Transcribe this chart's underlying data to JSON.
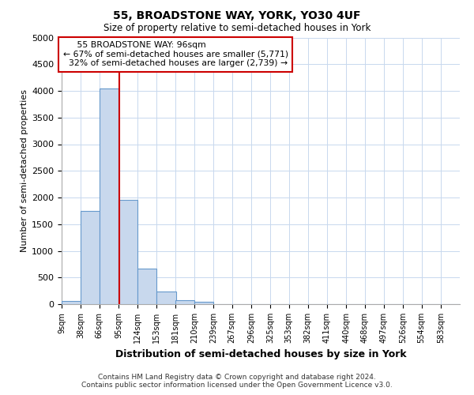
{
  "title": "55, BROADSTONE WAY, YORK, YO30 4UF",
  "subtitle": "Size of property relative to semi-detached houses in York",
  "xlabel": "Distribution of semi-detached houses by size in York",
  "ylabel": "Number of semi-detached properties",
  "bar_color": "#c8d8ed",
  "bar_edge_color": "#6699cc",
  "bin_starts": [
    9,
    38,
    66,
    95,
    124,
    153,
    181,
    210,
    239,
    267,
    296,
    325,
    353,
    382,
    411,
    440,
    468,
    497,
    526,
    554,
    583
  ],
  "bar_heights": [
    60,
    1750,
    4050,
    1950,
    660,
    240,
    80,
    50,
    0,
    0,
    0,
    0,
    0,
    0,
    0,
    0,
    0,
    0,
    0,
    0,
    0
  ],
  "bin_width": 29,
  "property_size": 96,
  "property_label": "55 BROADSTONE WAY: 96sqm",
  "pct_smaller": 67,
  "count_smaller": 5771,
  "pct_larger": 32,
  "count_larger": 2739,
  "ylim": [
    0,
    5000
  ],
  "yticks": [
    0,
    500,
    1000,
    1500,
    2000,
    2500,
    3000,
    3500,
    4000,
    4500,
    5000
  ],
  "footer_line1": "Contains HM Land Registry data © Crown copyright and database right 2024.",
  "footer_line2": "Contains public sector information licensed under the Open Government Licence v3.0.",
  "annotation_box_color": "#cc0000",
  "vline_color": "#cc0000",
  "background_color": "#ffffff",
  "grid_color": "#c8d8ee"
}
